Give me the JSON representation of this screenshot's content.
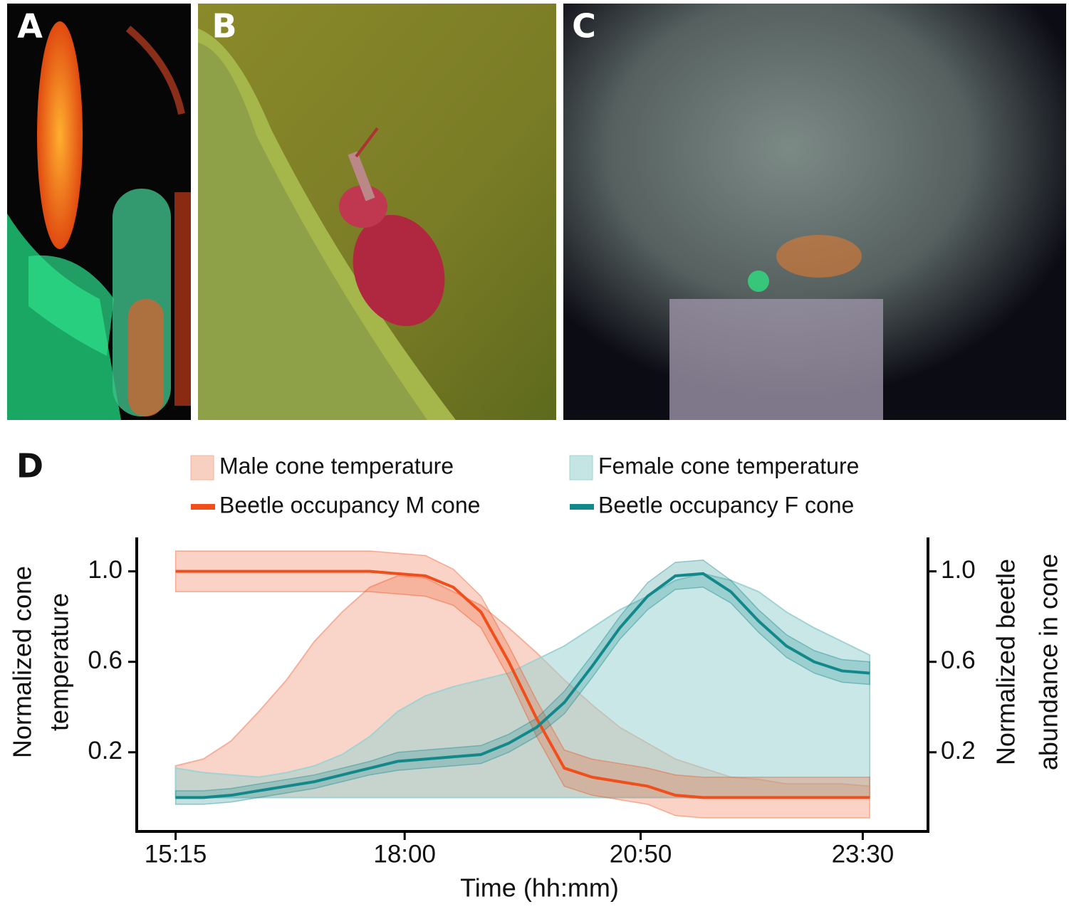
{
  "panels": [
    {
      "label": "A"
    },
    {
      "label": "B"
    },
    {
      "label": "C"
    }
  ],
  "chart_data": {
    "type": "line",
    "panel_label": "D",
    "xlabel": "Time (hh:mm)",
    "ylabel": [
      "Normalized cone",
      "temperature"
    ],
    "y2label": [
      "Normalized beetle",
      "abundance in cone"
    ],
    "x": [
      915,
      935,
      955,
      975,
      995,
      1015,
      1035,
      1055,
      1075,
      1095,
      1115,
      1135,
      1155,
      1175,
      1195,
      1215,
      1235,
      1255,
      1275,
      1295,
      1315,
      1335,
      1355,
      1375,
      1395,
      1415
    ],
    "xlim": [
      887,
      1457
    ],
    "xticks": [
      {
        "value": 915,
        "label": "15:15"
      },
      {
        "value": 1080,
        "label": "18:00"
      },
      {
        "value": 1250,
        "label": "20:50"
      },
      {
        "value": 1410,
        "label": "23:30"
      }
    ],
    "ylim": [
      -0.15,
      1.15
    ],
    "yticks": [
      0.2,
      0.6,
      {
        "value": 1,
        "label": "1.0"
      }
    ],
    "y2lim": [
      -0.15,
      1.15
    ],
    "y2ticks": [
      0.2,
      0.6,
      {
        "value": 1,
        "label": "1.0"
      }
    ],
    "series": [
      {
        "name": "Male cone temperature",
        "style": "area",
        "color": "#f4b09a",
        "values": [
          0.14,
          0.17,
          0.25,
          0.38,
          0.52,
          0.69,
          0.82,
          0.93,
          0.98,
          0.97,
          0.91,
          0.85,
          0.75,
          0.64,
          0.52,
          0.41,
          0.31,
          0.24,
          0.17,
          0.13,
          0.09,
          0.08,
          0.06,
          0.06,
          0.06,
          0.05
        ]
      },
      {
        "name": "Female cone temperature",
        "style": "area",
        "color": "#9fd3d3",
        "values": [
          0.13,
          0.11,
          0.1,
          0.09,
          0.11,
          0.14,
          0.19,
          0.27,
          0.38,
          0.45,
          0.49,
          0.52,
          0.55,
          0.61,
          0.67,
          0.75,
          0.83,
          0.89,
          0.96,
          0.99,
          0.96,
          0.91,
          0.82,
          0.75,
          0.69,
          0.63
        ]
      },
      {
        "name": "Beetle occupancy M cone",
        "style": "line",
        "axis": "y2",
        "color": "#f04e1a",
        "values": [
          1.0,
          1.0,
          1.0,
          1.0,
          1.0,
          1.0,
          1.0,
          1.0,
          0.99,
          0.98,
          0.93,
          0.82,
          0.6,
          0.35,
          0.13,
          0.09,
          0.07,
          0.05,
          0.01,
          0.0,
          0.0,
          0.0,
          0.0,
          0.0,
          0.0,
          0.0
        ],
        "error": [
          0.09,
          0.09,
          0.09,
          0.09,
          0.09,
          0.09,
          0.09,
          0.09,
          0.09,
          0.09,
          0.08,
          0.07,
          0.07,
          0.08,
          0.08,
          0.08,
          0.08,
          0.08,
          0.09,
          0.09,
          0.09,
          0.09,
          0.09,
          0.09,
          0.09,
          0.09
        ]
      },
      {
        "name": "Beetle occupancy F cone",
        "style": "line",
        "axis": "y2",
        "color": "#12888a",
        "values": [
          0.0,
          0.0,
          0.01,
          0.03,
          0.05,
          0.07,
          0.1,
          0.13,
          0.16,
          0.17,
          0.18,
          0.19,
          0.24,
          0.31,
          0.42,
          0.58,
          0.75,
          0.89,
          0.98,
          0.99,
          0.91,
          0.78,
          0.67,
          0.6,
          0.56,
          0.55
        ],
        "error": [
          0.03,
          0.03,
          0.03,
          0.03,
          0.03,
          0.03,
          0.03,
          0.03,
          0.04,
          0.04,
          0.04,
          0.04,
          0.04,
          0.04,
          0.05,
          0.05,
          0.05,
          0.06,
          0.06,
          0.06,
          0.05,
          0.05,
          0.05,
          0.05,
          0.05,
          0.05
        ]
      }
    ]
  }
}
